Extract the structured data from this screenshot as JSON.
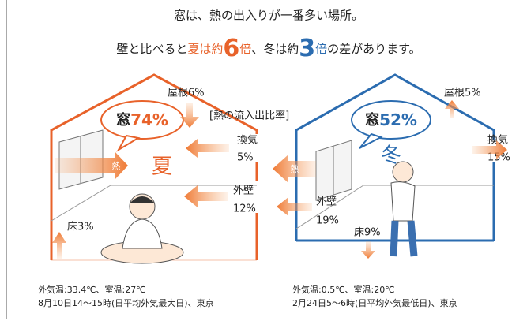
{
  "header": {
    "line1": "窓は、熱の出入りが一番多い場所。",
    "line2": [
      "壁と比べると",
      "夏は約",
      "6",
      "倍",
      "、冬は約",
      "3",
      "倍",
      "の差があります。"
    ]
  },
  "legend_note": "[熱の流入出比率]",
  "summer": {
    "window_label": "窓",
    "window_value": "74%",
    "season": "夏",
    "heat": "熱",
    "roof": "屋根6%",
    "ventilation": "換気",
    "ventilation_value": "5%",
    "wall": "外壁",
    "wall_value": "12%",
    "floor": "床3%",
    "caption": [
      "外気温:33.4℃、室温:27℃",
      "8月10日14～15時(日平均外気最大日)、東京"
    ]
  },
  "winter": {
    "window_label": "窓",
    "window_value": "52%",
    "season": "冬",
    "heat": "熱",
    "roof": "屋根5%",
    "ventilation": "換気",
    "ventilation_value": "15%",
    "wall": "外壁",
    "wall_value": "19%",
    "floor": "床9%",
    "caption": [
      "外気温:0.5℃、室温:20℃",
      "2月24日5～6時(日平均外気最低日)、東京"
    ]
  }
}
